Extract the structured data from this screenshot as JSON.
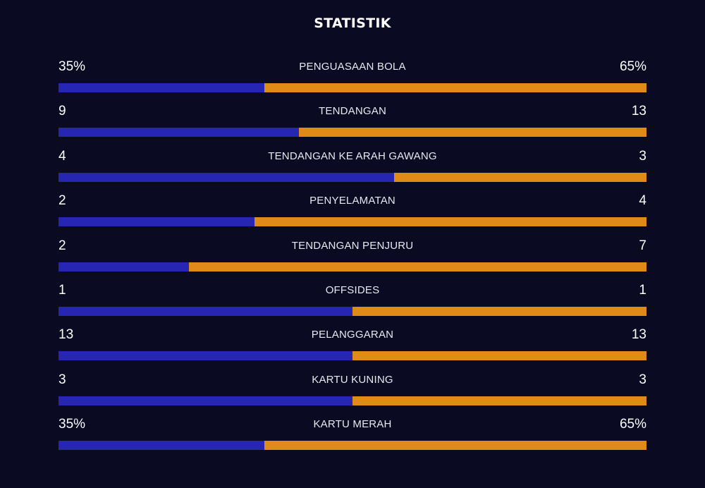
{
  "header": {
    "title": "STATISTIK"
  },
  "colors": {
    "background": "#0a0a22",
    "home_bar": "#2626b2",
    "away_bar": "#e08a18",
    "text": "#ffffff"
  },
  "stats": [
    {
      "label": "PENGUASAAN BOLA",
      "home": "35%",
      "away": "65%",
      "home_share": 0.35
    },
    {
      "label": "TENDANGAN",
      "home": "9",
      "away": "13",
      "home_share": 0.409
    },
    {
      "label": "TENDANGAN KE ARAH GAWANG",
      "home": "4",
      "away": "3",
      "home_share": 0.571
    },
    {
      "label": "PENYELAMATAN",
      "home": "2",
      "away": "4",
      "home_share": 0.333
    },
    {
      "label": "TENDANGAN PENJURU",
      "home": "2",
      "away": "7",
      "home_share": 0.222
    },
    {
      "label": "OFFSIDES",
      "home": "1",
      "away": "1",
      "home_share": 0.5
    },
    {
      "label": "PELANGGARAN",
      "home": "13",
      "away": "13",
      "home_share": 0.5
    },
    {
      "label": "KARTU KUNING",
      "home": "3",
      "away": "3",
      "home_share": 0.5
    },
    {
      "label": "KARTU MERAH",
      "home": "35%",
      "away": "65%",
      "home_share": 0.35
    }
  ]
}
